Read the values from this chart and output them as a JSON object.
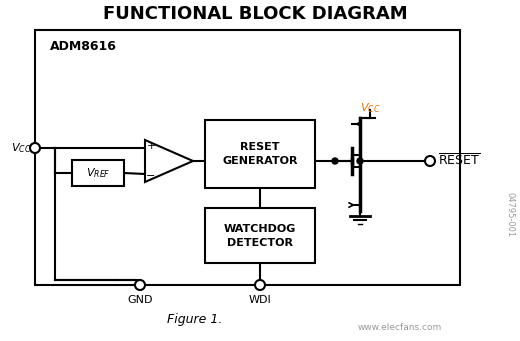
{
  "title": "FUNCTIONAL BLOCK DIAGRAM",
  "title_fontsize": 13,
  "bg_color": "#ffffff",
  "chip_label": "ADM8616",
  "figure_label": "Figure 1.",
  "watermark": "04795-001",
  "site_text": "www.elecfans.com",
  "colors": {
    "black": "#000000",
    "orange": "#E87000",
    "gray": "#999999",
    "lgray": "#BBBBBB"
  },
  "figsize": [
    5.2,
    3.41
  ],
  "dpi": 100
}
